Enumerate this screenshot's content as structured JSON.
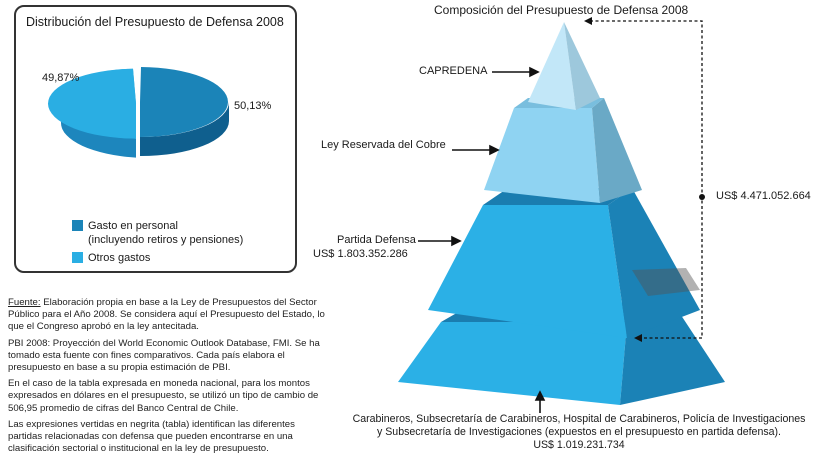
{
  "pie": {
    "title": "Distribución del Presupuesto de Defensa 2008",
    "label_personal": "50,13%",
    "label_otros": "49,87%",
    "legend_personal_1": "Gasto en personal",
    "legend_personal_2": "(incluyendo retiros y pensiones)",
    "legend_otros": "Otros gastos"
  },
  "chart_data": [
    {
      "type": "pie",
      "title": "Distribución del Presupuesto de Defensa 2008",
      "labels": [
        "Gasto en personal (incluyendo retiros y pensiones)",
        "Otros gastos"
      ],
      "values": [
        50.13,
        49.87
      ],
      "legend": "bottom"
    },
    {
      "type": "pyramid",
      "title": "Composición del Presupuesto de Defensa 2008",
      "layers": [
        "CAPREDENA",
        "Ley Reservada del Cobre",
        "Partida Defensa",
        "Carabineros, Subsecretaría de Carabineros, Hospital de Carabineros, Policía de Investigaciones y Subsecretaría de Investigaciones"
      ],
      "values": [
        null,
        null,
        1803352286,
        1019231734
      ],
      "total": 4471052664
    }
  ],
  "pyramid": {
    "title": "Composición del Presupuesto de Defensa 2008",
    "capredena": "CAPREDENA",
    "cobre": "Ley Reservada del Cobre",
    "defensa": "Partida Defensa",
    "defensa_amount": "US$  1.803.352.286",
    "total": "US$ 4.471.052.664",
    "carab_line1": "Carabineros, Subsecretaría de Carabineros, Hospital de Carabineros,  Policía de Investigaciones",
    "carab_line2": "y Subsecretaría de Investigaciones (expuestos en el presupuesto en partida defensa).",
    "carab_amount": "US$ 1.019.231.734"
  },
  "notes": {
    "fuente_label": "Fuente:",
    "fuente_text": " Elaboración propia en base a la Ley de Presupuestos del Sector Público para el Año 2008. Se considera aquí el Presupuesto del Estado, lo que el Congreso aprobó en la ley antecitada.",
    "pbi": "PBI 2008: Proyección del World Economic Outlook Database, FMI. Se ha tomado esta fuente con fines comparativos. Cada país elabora el presupuesto en base a su propia estimación de PBI.",
    "moneda": "En el caso de la tabla expresada en moneda nacional, para los montos expresados en dólares en el presupuesto, se utilizó un tipo de cambio de 506,95 promedio de cifras del Banco Central de Chile.",
    "negrita": "Las expresiones vertidas en negrita (tabla) identifican las diferentes partidas relacionadas con defensa que pueden encontrarse en una clasificación sectorial o institucional en la ley de presupuesto."
  },
  "colors": {
    "personal": "#1b84b8",
    "otros": "#2aaee3",
    "level1": "#2bb0e6",
    "level2": "#8fd3f2",
    "level3": "#bfe6f8"
  }
}
